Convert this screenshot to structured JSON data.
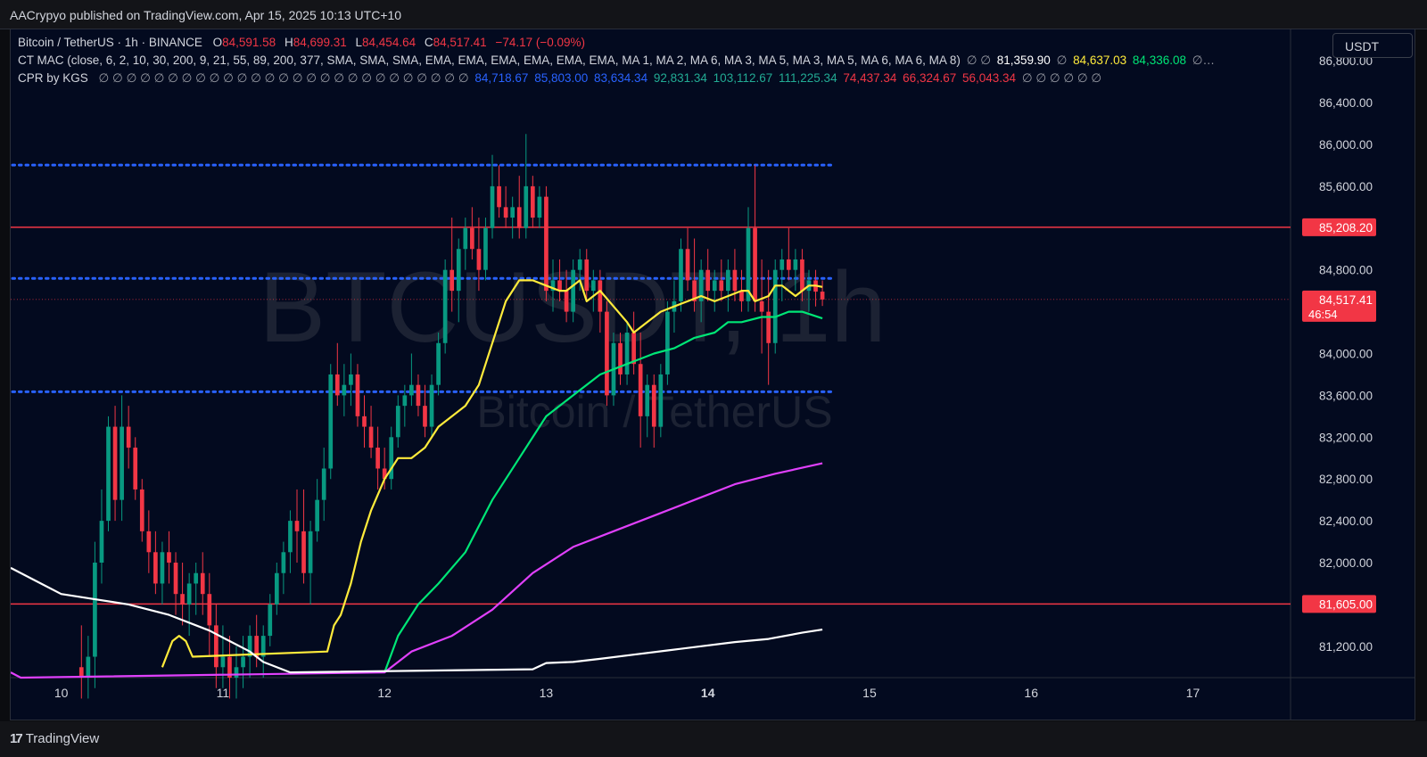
{
  "header": {
    "published_line": "AACrypyo published on TradingView.com, Apr 15, 2025 10:13 UTC+10"
  },
  "legend": {
    "symbol": "Bitcoin / TetherUS · 1h · BINANCE",
    "open_label": "O",
    "open": "84,591.58",
    "high_label": "H",
    "high": "84,699.31",
    "low_label": "L",
    "low": "84,454.64",
    "close_label": "C",
    "close": "84,517.41",
    "change": "−74.17 (−0.09%)",
    "ma_name": "CT MAC (close, 6, 2, 10, 30, 200, 9, 21, 55, 89, 200, 377, SMA, SMA, SMA, EMA, EMA, EMA, EMA, EMA, EMA, MA 1, MA 2, MA 6, MA 3, MA 5, MA 3, MA 5, MA 6, MA 6, MA 8)",
    "ma_null_1": "∅ ∅",
    "ma_val_1": "81,359.90",
    "ma_null_2": "∅",
    "ma_val_2": "84,637.03",
    "ma_val_3": "84,336.08",
    "ma_tail": "∅…",
    "cpr_name": "CPR by KGS",
    "cpr_nulls_1": "∅ ∅ ∅ ∅ ∅ ∅ ∅ ∅ ∅ ∅ ∅ ∅ ∅ ∅ ∅ ∅ ∅ ∅ ∅ ∅ ∅ ∅ ∅ ∅ ∅ ∅ ∅",
    "cpr_val_1": "84,718.67",
    "cpr_val_2": "85,803.00",
    "cpr_val_3": "83,634.34",
    "cpr_val_4": "92,831.34",
    "cpr_val_5": "103,112.67",
    "cpr_val_6": "111,225.34",
    "cpr_val_7": "74,437.34",
    "cpr_val_8": "66,324.67",
    "cpr_val_9": "56,043.34",
    "cpr_nulls_2": "∅ ∅ ∅ ∅ ∅ ∅"
  },
  "currency_button": "USDT",
  "watermark": {
    "ticker": "BTCUSDT, 1h",
    "name": "Bitcoin / TetherUS"
  },
  "footer": {
    "brand": "TradingView",
    "logo_mark": "17"
  },
  "colors": {
    "background": "#030a1f",
    "up": "#089981",
    "down": "#f23645",
    "ma_yellow": "#ffeb3b",
    "ma_green": "#00e676",
    "ma_magenta": "#e040fb",
    "ma_white": "#ffffff",
    "cpr_blue": "#2962ff",
    "level_red": "#f23645"
  },
  "chart_data": {
    "type": "candlestick",
    "ylim": [
      80900,
      87100
    ],
    "y_ticks": [
      81200,
      81600,
      82000,
      82400,
      82800,
      83200,
      83600,
      84000,
      84400,
      84800,
      85200,
      85600,
      86000,
      86400,
      86800
    ],
    "y_tick_labels": [
      "81,200.00",
      "",
      "82,000.00",
      "82,400.00",
      "82,800.00",
      "83,200.00",
      "83,600.00",
      "84,000.00",
      "",
      "84,800.00",
      "",
      "85,600.00",
      "86,000.00",
      "86,400.00",
      "86,800.00"
    ],
    "x_labels": [
      {
        "label": "10",
        "hour": 0,
        "bold": false
      },
      {
        "label": "11",
        "hour": 24,
        "bold": false
      },
      {
        "label": "12",
        "hour": 48,
        "bold": false
      },
      {
        "label": "13",
        "hour": 72,
        "bold": false
      },
      {
        "label": "14",
        "hour": 96,
        "bold": true
      },
      {
        "label": "15",
        "hour": 120,
        "bold": false
      },
      {
        "label": "16",
        "hour": 144,
        "bold": false
      },
      {
        "label": "17",
        "hour": 168,
        "bold": false
      }
    ],
    "x_range_hours": [
      -7.5,
      182.5
    ],
    "first_candle_hour": 3,
    "candles": [
      [
        81000,
        81400,
        80700,
        80900
      ],
      [
        80900,
        81300,
        80700,
        81100
      ],
      [
        81100,
        82200,
        80800,
        82000
      ],
      [
        82000,
        82700,
        81800,
        82400
      ],
      [
        82400,
        83400,
        82300,
        83300
      ],
      [
        83300,
        83500,
        82400,
        82600
      ],
      [
        82600,
        83600,
        82400,
        83300
      ],
      [
        83300,
        83500,
        82900,
        83100
      ],
      [
        83100,
        83200,
        82600,
        82700
      ],
      [
        82700,
        82800,
        82200,
        82300
      ],
      [
        82300,
        82500,
        81900,
        82100
      ],
      [
        82100,
        82300,
        81700,
        81800
      ],
      [
        81800,
        82200,
        81600,
        82100
      ],
      [
        82100,
        82300,
        81800,
        82000
      ],
      [
        82000,
        82100,
        81500,
        81700
      ],
      [
        81700,
        82000,
        81400,
        81600
      ],
      [
        81600,
        81900,
        81300,
        81800
      ],
      [
        81800,
        82000,
        81500,
        81900
      ],
      [
        81900,
        82100,
        81500,
        81700
      ],
      [
        81700,
        81900,
        81100,
        81400
      ],
      [
        81400,
        81600,
        80800,
        81000
      ],
      [
        81000,
        81400,
        80800,
        81100
      ],
      [
        81100,
        81300,
        80700,
        80900
      ],
      [
        80900,
        81200,
        80700,
        81000
      ],
      [
        81000,
        81300,
        80800,
        81100
      ],
      [
        81100,
        81400,
        80900,
        81300
      ],
      [
        81300,
        81500,
        81000,
        81100
      ],
      [
        81100,
        81400,
        80900,
        81300
      ],
      [
        81300,
        81700,
        81200,
        81600
      ],
      [
        81600,
        82000,
        81500,
        81900
      ],
      [
        81900,
        82200,
        81700,
        82100
      ],
      [
        82100,
        82500,
        81900,
        82400
      ],
      [
        82400,
        82700,
        82000,
        82300
      ],
      [
        82300,
        82700,
        81800,
        81900
      ],
      [
        81900,
        82400,
        81600,
        82300
      ],
      [
        82300,
        82800,
        82200,
        82600
      ],
      [
        82600,
        83100,
        82400,
        82900
      ],
      [
        82900,
        83900,
        82800,
        83800
      ],
      [
        83800,
        84100,
        83500,
        83600
      ],
      [
        83600,
        83900,
        83400,
        83700
      ],
      [
        83700,
        84000,
        83500,
        83800
      ],
      [
        83800,
        83900,
        83300,
        83400
      ],
      [
        83400,
        83600,
        83100,
        83300
      ],
      [
        83300,
        83500,
        83000,
        83100
      ],
      [
        83100,
        83300,
        82700,
        82900
      ],
      [
        82900,
        83100,
        82700,
        82800
      ],
      [
        82800,
        83300,
        82700,
        83200
      ],
      [
        83200,
        83600,
        83100,
        83500
      ],
      [
        83500,
        83700,
        83300,
        83600
      ],
      [
        83600,
        84000,
        83500,
        83700
      ],
      [
        83700,
        83800,
        83400,
        83500
      ],
      [
        83500,
        83700,
        83200,
        83300
      ],
      [
        83300,
        83800,
        83200,
        83700
      ],
      [
        83700,
        84200,
        83600,
        84100
      ],
      [
        84100,
        84900,
        84000,
        84800
      ],
      [
        84800,
        85300,
        84400,
        84600
      ],
      [
        84600,
        85100,
        84300,
        85000
      ],
      [
        85000,
        85300,
        84800,
        85200
      ],
      [
        85200,
        85400,
        84900,
        85000
      ],
      [
        85000,
        85300,
        84600,
        84800
      ],
      [
        84800,
        85300,
        84700,
        85200
      ],
      [
        85200,
        85900,
        85100,
        85600
      ],
      [
        85600,
        85800,
        85300,
        85400
      ],
      [
        85400,
        85600,
        85200,
        85300
      ],
      [
        85300,
        85500,
        85100,
        85400
      ],
      [
        85400,
        85700,
        85100,
        85200
      ],
      [
        85200,
        86100,
        85100,
        85600
      ],
      [
        85600,
        85700,
        85200,
        85300
      ],
      [
        85300,
        85600,
        85200,
        85500
      ],
      [
        85500,
        85600,
        84500,
        84600
      ],
      [
        84600,
        84900,
        84400,
        84700
      ],
      [
        84700,
        84900,
        84500,
        84600
      ],
      [
        84600,
        84800,
        84300,
        84400
      ],
      [
        84400,
        84900,
        84300,
        84800
      ],
      [
        84800,
        85000,
        84600,
        84900
      ],
      [
        84900,
        85000,
        84500,
        84600
      ],
      [
        84600,
        84800,
        84400,
        84700
      ],
      [
        84700,
        84800,
        84200,
        84400
      ],
      [
        84400,
        84500,
        83500,
        83600
      ],
      [
        83600,
        84200,
        83500,
        84100
      ],
      [
        84100,
        84200,
        83700,
        83800
      ],
      [
        83800,
        84300,
        83700,
        84200
      ],
      [
        84200,
        84400,
        83800,
        83900
      ],
      [
        83900,
        84200,
        83100,
        83400
      ],
      [
        83400,
        83800,
        83200,
        83700
      ],
      [
        83700,
        83800,
        83100,
        83300
      ],
      [
        83300,
        83900,
        83200,
        83800
      ],
      [
        83800,
        84500,
        83700,
        84400
      ],
      [
        84400,
        84700,
        84200,
        84500
      ],
      [
        84500,
        85100,
        84400,
        85000
      ],
      [
        85000,
        85200,
        84600,
        84700
      ],
      [
        84700,
        85100,
        84400,
        84500
      ],
      [
        84500,
        84900,
        84300,
        84800
      ],
      [
        84800,
        85000,
        84500,
        84600
      ],
      [
        84600,
        84800,
        84400,
        84700
      ],
      [
        84700,
        84900,
        84500,
        84600
      ],
      [
        84600,
        84900,
        84400,
        84800
      ],
      [
        84800,
        85000,
        84500,
        84600
      ],
      [
        84600,
        84800,
        84400,
        84500
      ],
      [
        84500,
        85400,
        84400,
        85200
      ],
      [
        85200,
        85800,
        84400,
        84500
      ],
      [
        84500,
        84900,
        84000,
        84400
      ],
      [
        84400,
        84800,
        83700,
        84100
      ],
      [
        84100,
        84900,
        84000,
        84800
      ],
      [
        84800,
        85000,
        84500,
        84900
      ],
      [
        84900,
        85200,
        84700,
        84800
      ],
      [
        84800,
        85000,
        84600,
        84900
      ],
      [
        84900,
        85000,
        84500,
        84600
      ],
      [
        84600,
        84800,
        84400,
        84700
      ],
      [
        84700,
        84800,
        84450,
        84592
      ],
      [
        84592,
        84699,
        84455,
        84517
      ]
    ],
    "series": [
      {
        "name": "",
        "color": "#ffeb3b",
        "points": [
          [
            15,
            81000
          ],
          [
            16.5,
            81250
          ],
          [
            17.5,
            81300
          ],
          [
            18.5,
            81250
          ],
          [
            19.5,
            81100
          ],
          [
            39.5,
            81150
          ],
          [
            40.5,
            81400
          ],
          [
            41.5,
            81500
          ],
          [
            43,
            81800
          ],
          [
            44.5,
            82200
          ],
          [
            46,
            82500
          ],
          [
            48,
            82800
          ],
          [
            50,
            83000
          ],
          [
            52,
            83000
          ],
          [
            54,
            83100
          ],
          [
            56,
            83300
          ],
          [
            58,
            83400
          ],
          [
            60,
            83500
          ],
          [
            62,
            83700
          ],
          [
            64,
            84100
          ],
          [
            66,
            84500
          ],
          [
            68,
            84700
          ],
          [
            70,
            84700
          ],
          [
            72,
            84650
          ],
          [
            74,
            84600
          ],
          [
            75,
            84600
          ],
          [
            77,
            84700
          ],
          [
            78,
            84500
          ],
          [
            80,
            84600
          ],
          [
            82,
            84450
          ],
          [
            84,
            84300
          ],
          [
            85,
            84200
          ],
          [
            87,
            84300
          ],
          [
            89,
            84400
          ],
          [
            91,
            84450
          ],
          [
            93,
            84500
          ],
          [
            95,
            84550
          ],
          [
            97,
            84500
          ],
          [
            99,
            84550
          ],
          [
            101,
            84600
          ],
          [
            102,
            84600
          ],
          [
            103,
            84500
          ],
          [
            105,
            84550
          ],
          [
            106,
            84650
          ],
          [
            107,
            84650
          ],
          [
            108,
            84600
          ],
          [
            109,
            84550
          ],
          [
            110,
            84600
          ],
          [
            111,
            84650
          ],
          [
            112,
            84650
          ],
          [
            113,
            84637
          ]
        ]
      },
      {
        "name": "",
        "color": "#00e676",
        "points": [
          [
            48,
            80950
          ],
          [
            50,
            81300
          ],
          [
            53,
            81600
          ],
          [
            56,
            81800
          ],
          [
            60,
            82100
          ],
          [
            64,
            82600
          ],
          [
            68,
            83000
          ],
          [
            72,
            83400
          ],
          [
            76,
            83600
          ],
          [
            80,
            83800
          ],
          [
            84,
            83900
          ],
          [
            86,
            83950
          ],
          [
            88,
            84000
          ],
          [
            91,
            84050
          ],
          [
            94,
            84150
          ],
          [
            97,
            84200
          ],
          [
            99,
            84300
          ],
          [
            101,
            84300
          ],
          [
            104,
            84350
          ],
          [
            106,
            84350
          ],
          [
            108,
            84400
          ],
          [
            110,
            84400
          ],
          [
            113,
            84336
          ]
        ]
      },
      {
        "name": "",
        "color": "#e040fb",
        "points": [
          [
            -7.5,
            80950
          ],
          [
            -6,
            80900
          ],
          [
            48,
            80950
          ],
          [
            52,
            81150
          ],
          [
            58,
            81300
          ],
          [
            64,
            81550
          ],
          [
            70,
            81900
          ],
          [
            76,
            82150
          ],
          [
            82,
            82300
          ],
          [
            88,
            82450
          ],
          [
            94,
            82600
          ],
          [
            100,
            82750
          ],
          [
            106,
            82850
          ],
          [
            113,
            82950
          ]
        ]
      },
      {
        "name": "",
        "color": "#ffffff",
        "points": [
          [
            -7.5,
            81950
          ],
          [
            -3,
            81800
          ],
          [
            0,
            81700
          ],
          [
            5,
            81650
          ],
          [
            10,
            81600
          ],
          [
            16,
            81500
          ],
          [
            22,
            81350
          ],
          [
            25,
            81250
          ],
          [
            28,
            81150
          ],
          [
            30,
            81050
          ],
          [
            34,
            80950
          ],
          [
            70,
            80980
          ],
          [
            72,
            81040
          ],
          [
            76,
            81050
          ],
          [
            80,
            81080
          ],
          [
            85,
            81120
          ],
          [
            90,
            81160
          ],
          [
            95,
            81200
          ],
          [
            100,
            81240
          ],
          [
            105,
            81270
          ],
          [
            110,
            81330
          ],
          [
            113,
            81360
          ]
        ]
      }
    ],
    "cpr_levels": [
      {
        "name": "",
        "value": 85803.0,
        "color": "#2962ff",
        "style": "dotted"
      },
      {
        "name": "",
        "value": 84718.67,
        "color": "#2962ff",
        "style": "dotted"
      },
      {
        "name": "",
        "value": 83634.34,
        "color": "#2962ff",
        "style": "dotted"
      }
    ],
    "horizontal_lines": [
      {
        "value": 85208.2,
        "label": "85,208.20",
        "color": "#f23645"
      },
      {
        "value": 81605.0,
        "label": "81,605.00",
        "color": "#f23645"
      }
    ],
    "last_price": {
      "value": 84517.41,
      "label": "84,517.41",
      "countdown": "46:54",
      "color": "#f23645"
    }
  }
}
